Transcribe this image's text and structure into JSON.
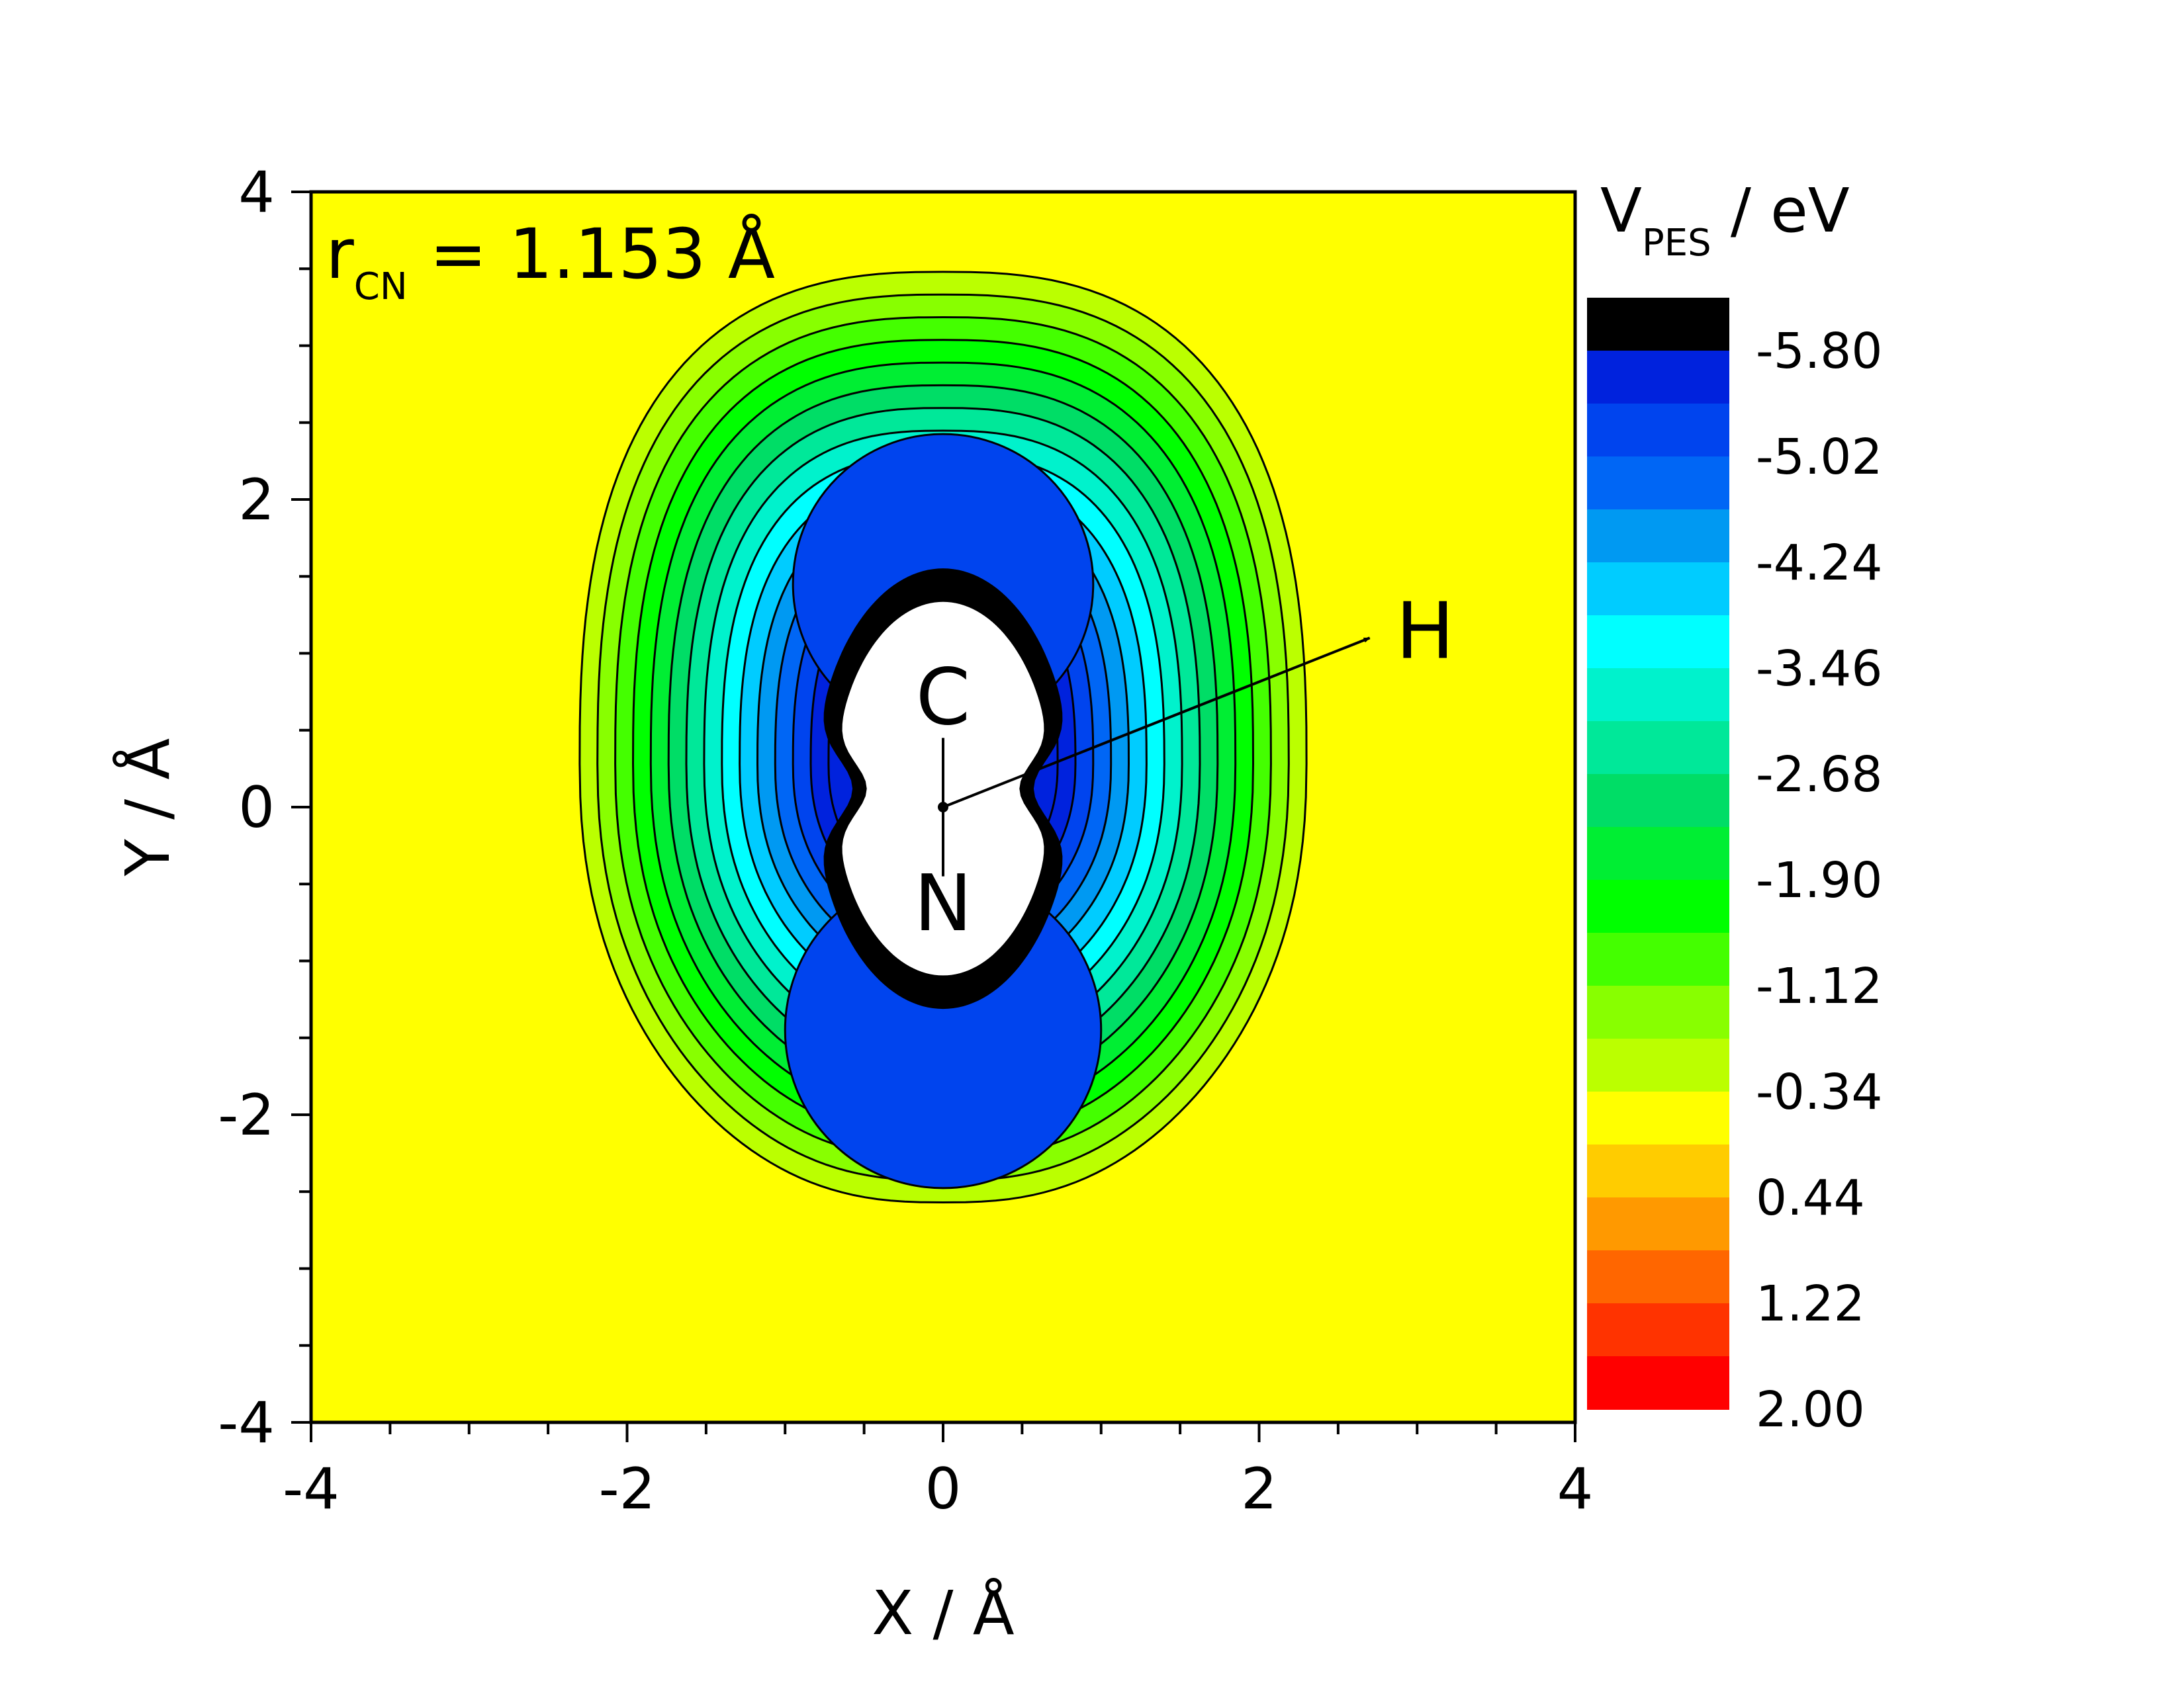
{
  "chart_data": {
    "type": "contour",
    "title": "",
    "annotation": {
      "main": "r",
      "sub": "CN",
      "rest": " = 1.153 Å"
    },
    "xlabel": "X / Å",
    "ylabel": "Y / Å",
    "xlim": [
      -4,
      4
    ],
    "ylim": [
      -4,
      4
    ],
    "xticks": [
      -4,
      -2,
      0,
      2,
      4
    ],
    "yticks": [
      -4,
      -2,
      0,
      2,
      4
    ],
    "grid": false,
    "colorbar": {
      "title_main": "V",
      "title_sub": "PES",
      "title_rest": " / eV",
      "labels": [
        "-5.80",
        "-5.02",
        "-4.24",
        "-3.46",
        "-2.68",
        "-1.90",
        "-1.12",
        "-0.34",
        "0.44",
        "1.22",
        "2.00"
      ],
      "colors": [
        "#000000",
        "#0022dd",
        "#0044ee",
        "#0066f5",
        "#0099f2",
        "#00ccff",
        "#00ffff",
        "#00f2cc",
        "#00e899",
        "#00dd66",
        "#00ee33",
        "#00ff00",
        "#44ff00",
        "#88ff00",
        "#bbff00",
        "#ffff00",
        "#ffcc00",
        "#ff9900",
        "#ff6600",
        "#ff3300",
        "#ff0000"
      ]
    },
    "atoms": [
      {
        "label": "C",
        "x": 0.0,
        "y": 0.72
      },
      {
        "label": "N",
        "x": 0.0,
        "y": -0.62
      },
      {
        "label": "H",
        "x": 3.05,
        "y": 1.15
      }
    ],
    "bond_arrow": {
      "from": [
        0,
        0
      ],
      "to": [
        2.7,
        1.1
      ]
    },
    "levels_ev": [
      -5.8,
      -5.41,
      -5.02,
      -4.63,
      -4.24,
      -3.85,
      -3.46,
      -3.07,
      -2.68,
      -2.29,
      -1.9,
      -1.51,
      -1.12,
      -0.73,
      -0.34
    ]
  }
}
